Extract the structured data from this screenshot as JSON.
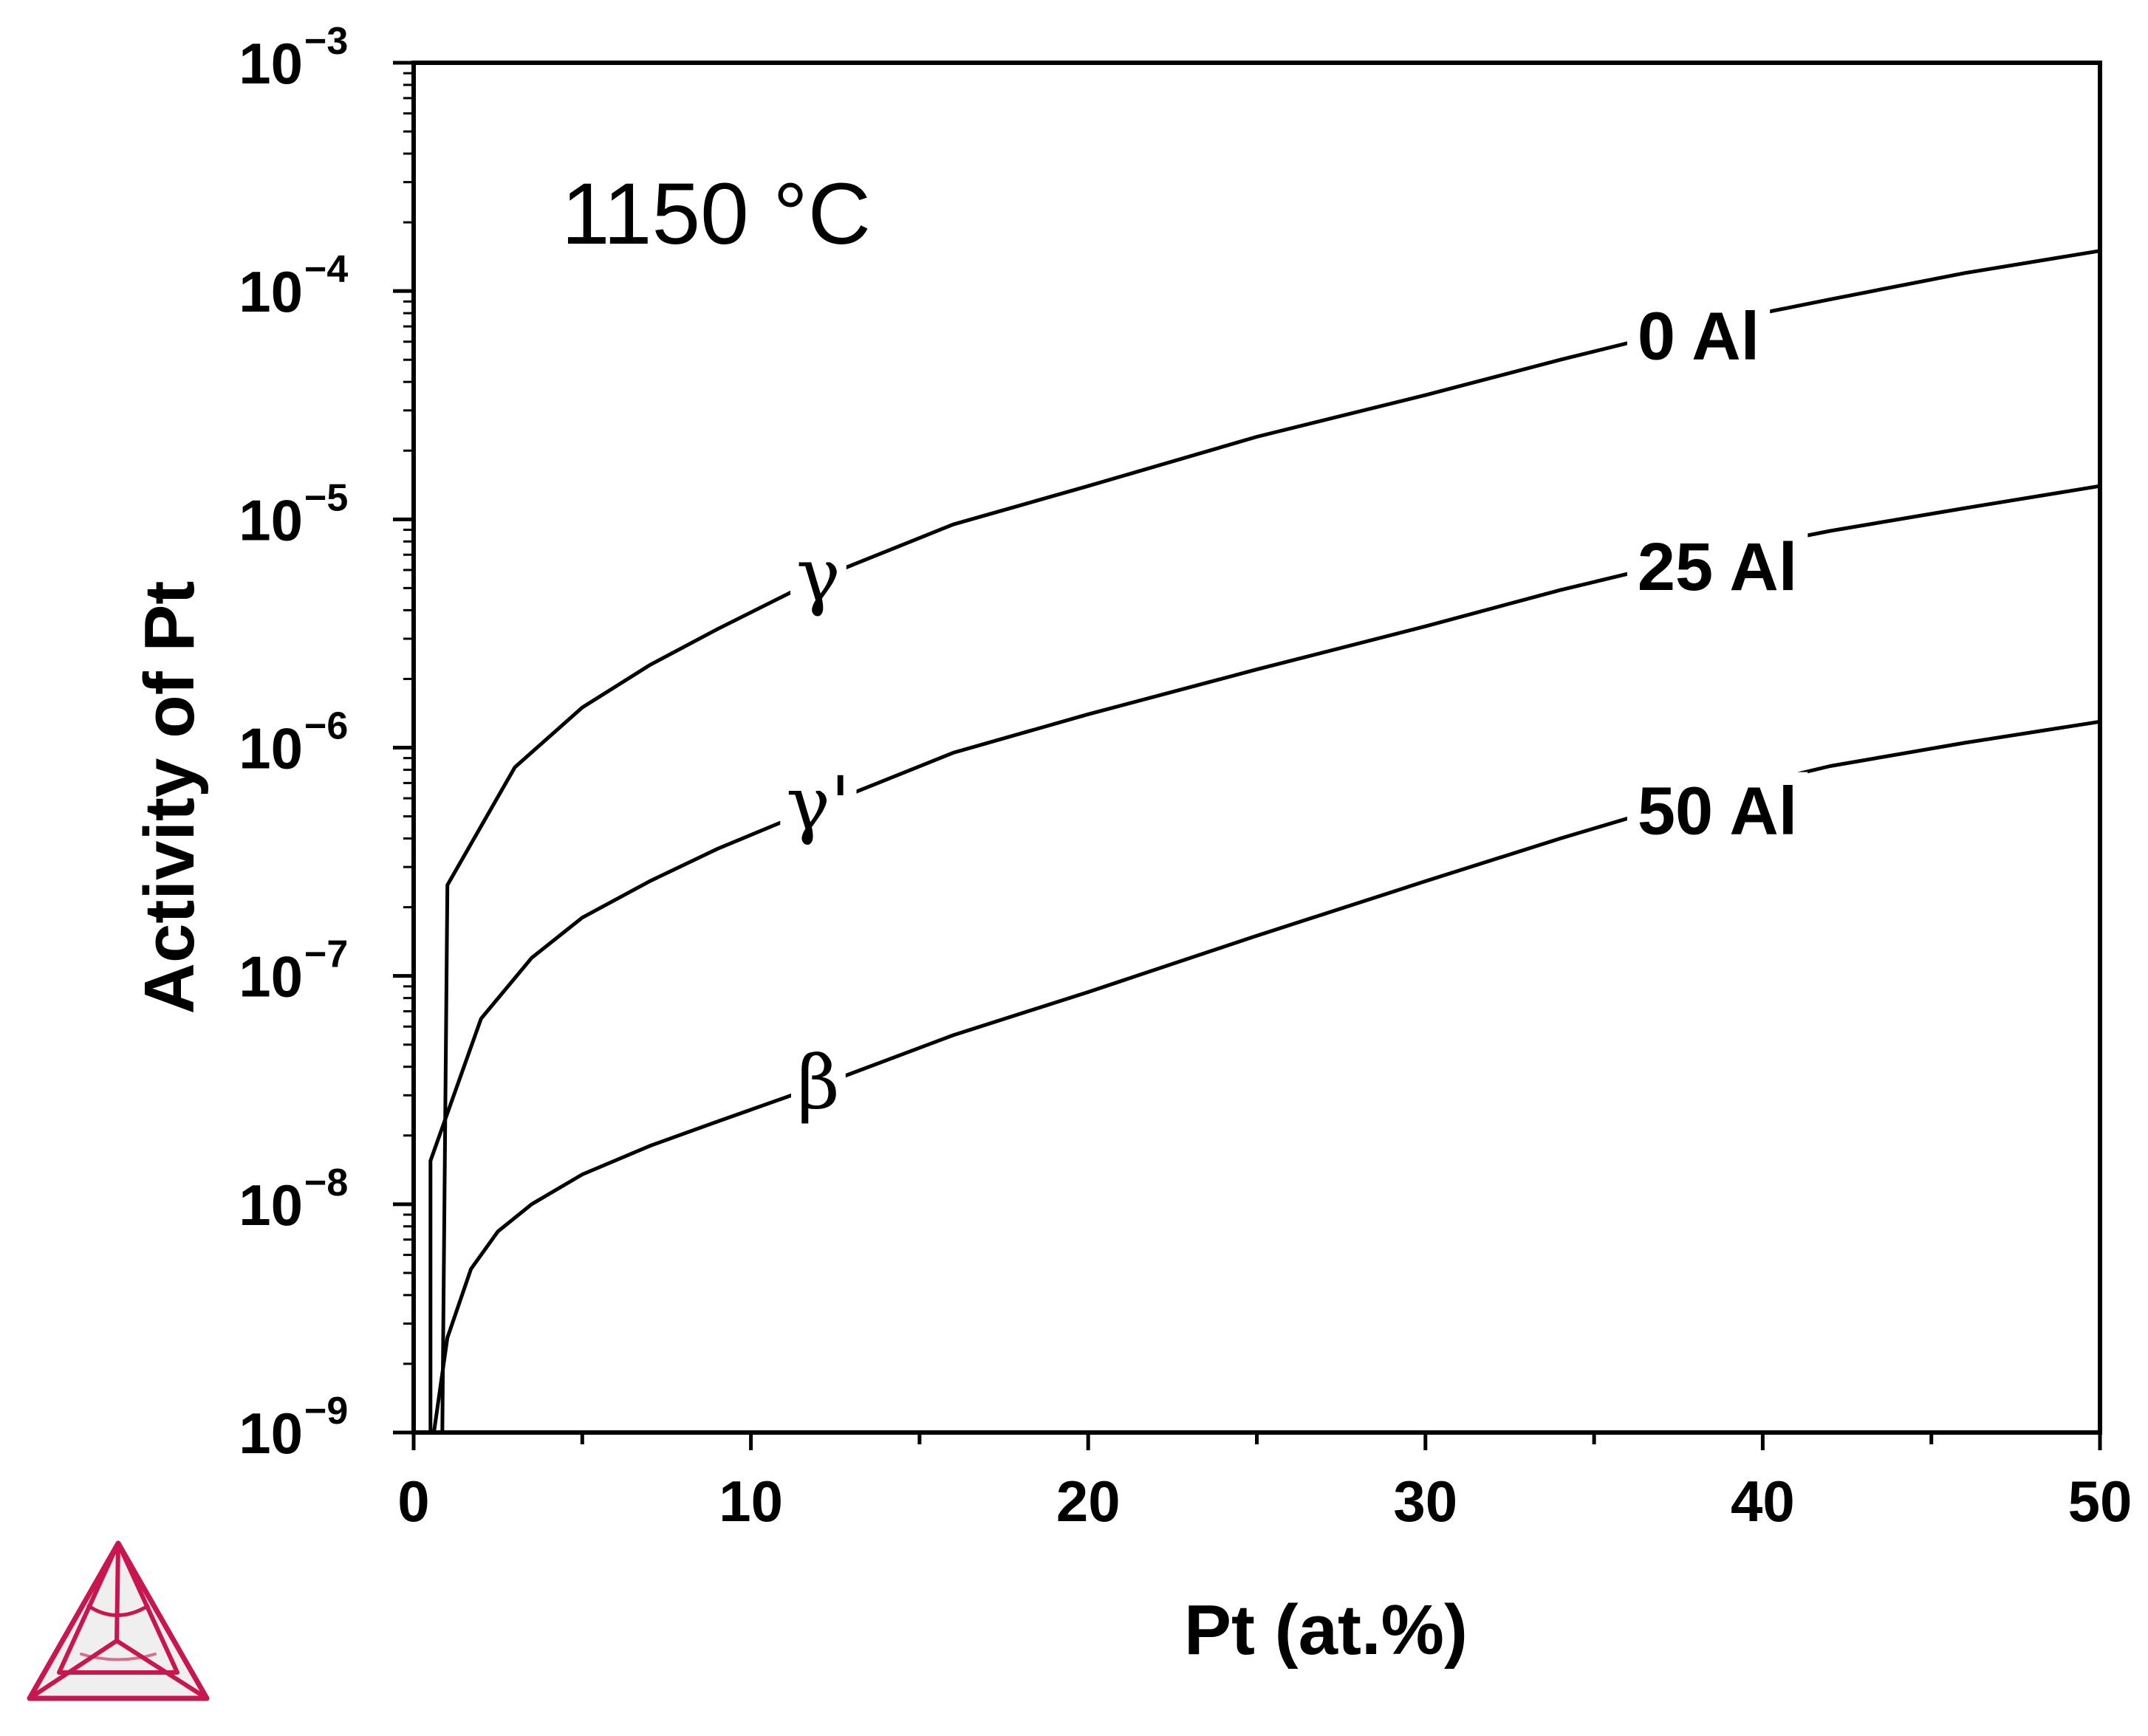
{
  "chart_data": {
    "type": "line",
    "xlabel": "Pt (at.%)",
    "ylabel": "Activity of Pt",
    "annotation": "1150 °C",
    "xlim": [
      0,
      50
    ],
    "ylim": [
      1e-09,
      0.001
    ],
    "yscale": "log",
    "grid": false,
    "legend": "none",
    "x_ticks": [
      "0",
      "10",
      "20",
      "30",
      "40",
      "50"
    ],
    "y_ticks": [
      {
        "base": "10",
        "exp": "−9"
      },
      {
        "base": "10",
        "exp": "−8"
      },
      {
        "base": "10",
        "exp": "−7"
      },
      {
        "base": "10",
        "exp": "−6"
      },
      {
        "base": "10",
        "exp": "−5"
      },
      {
        "base": "10",
        "exp": "−4"
      },
      {
        "base": "10",
        "exp": "−3"
      }
    ],
    "series": [
      {
        "name": "0 Al",
        "phase": "γ",
        "x": [
          0.85,
          1.0,
          3.0,
          5.0,
          7.0,
          9.0,
          12.0,
          16.0,
          20.0,
          25.0,
          30.0,
          34.0,
          38.0,
          42.0,
          46.0,
          50.0
        ],
        "y": [
          1e-09,
          2.5e-07,
          8.2e-07,
          1.5e-06,
          2.3e-06,
          3.3e-06,
          5.5e-06,
          9.5e-06,
          1.4e-05,
          2.3e-05,
          3.5e-05,
          5e-05,
          7e-05,
          9.2e-05,
          0.00012,
          0.00015
        ],
        "label_at_x": 36.2,
        "phase_label_at_x": 12.0
      },
      {
        "name": "25 Al",
        "phase": "γ'",
        "x": [
          0.5,
          0.5,
          2.0,
          3.5,
          5.0,
          7.0,
          9.0,
          12.0,
          16.0,
          20.0,
          25.0,
          30.0,
          34.0,
          38.0,
          42.0,
          46.0,
          50.0
        ],
        "y": [
          1e-09,
          1.55e-08,
          6.5e-08,
          1.2e-07,
          1.8e-07,
          2.6e-07,
          3.6e-07,
          5.5e-07,
          9.5e-07,
          1.4e-06,
          2.2e-06,
          3.4e-06,
          4.9e-06,
          6.8e-06,
          8.9e-06,
          1.12e-05,
          1.4e-05
        ],
        "label_at_x": 36.2,
        "phase_label_at_x": 12.0
      },
      {
        "name": "50 Al",
        "phase": "β",
        "x": [
          0.6,
          1.0,
          1.7,
          2.5,
          3.5,
          5.0,
          7.0,
          9.0,
          12.0,
          16.0,
          20.0,
          25.0,
          30.0,
          34.0,
          38.0,
          42.0,
          46.0,
          50.0
        ],
        "y": [
          1e-09,
          2.6e-09,
          5.2e-09,
          7.6e-09,
          1e-08,
          1.35e-08,
          1.8e-08,
          2.3e-08,
          3.3e-08,
          5.5e-08,
          8.5e-08,
          1.5e-07,
          2.6e-07,
          4e-07,
          6e-07,
          8.3e-07,
          1.05e-06,
          1.3e-06
        ],
        "label_at_x": 36.2,
        "phase_label_at_x": 12.0
      }
    ]
  },
  "logo": {
    "name": "thermo-calc-triangle-logo",
    "color": "#c8174f"
  }
}
